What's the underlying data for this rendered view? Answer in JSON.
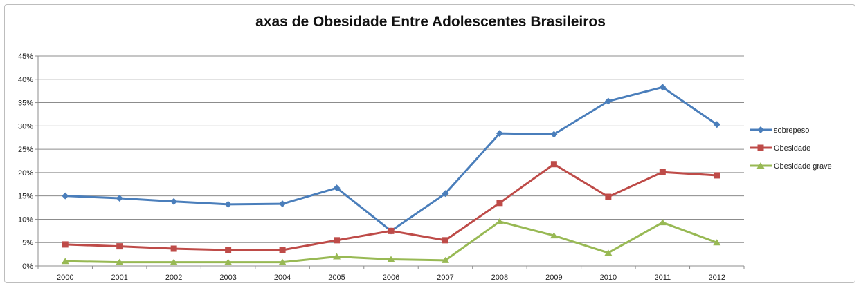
{
  "chart_data": {
    "type": "line",
    "title": "axas de Obesidade Entre Adolescentes Brasileiros",
    "xlabel": "",
    "ylabel": "",
    "categories": [
      "2000",
      "2001",
      "2002",
      "2003",
      "2004",
      "2005",
      "2006",
      "2007",
      "2008",
      "2009",
      "2010",
      "2011",
      "2012"
    ],
    "ylim": [
      0,
      45
    ],
    "yticks": [
      "0%",
      "5%",
      "10%",
      "15%",
      "20%",
      "25%",
      "30%",
      "35%",
      "40%",
      "45%"
    ],
    "grid": true,
    "legend": "right",
    "series": [
      {
        "name": "sobrepeso",
        "color": "#4a7ebb",
        "marker": "diamond",
        "values": [
          15.0,
          14.5,
          13.8,
          13.2,
          13.3,
          16.7,
          7.5,
          15.5,
          28.4,
          28.2,
          35.3,
          38.3,
          30.3
        ]
      },
      {
        "name": "Obesidade",
        "color": "#be4b48",
        "marker": "square",
        "values": [
          4.6,
          4.2,
          3.7,
          3.4,
          3.4,
          5.5,
          7.5,
          5.5,
          13.5,
          21.8,
          14.8,
          20.1,
          19.4
        ]
      },
      {
        "name": "Obesidade grave",
        "color": "#98b954",
        "marker": "triangle",
        "values": [
          1.0,
          0.8,
          0.8,
          0.8,
          0.8,
          2.0,
          1.4,
          1.2,
          9.5,
          6.5,
          2.8,
          9.3,
          5.0
        ]
      }
    ]
  }
}
